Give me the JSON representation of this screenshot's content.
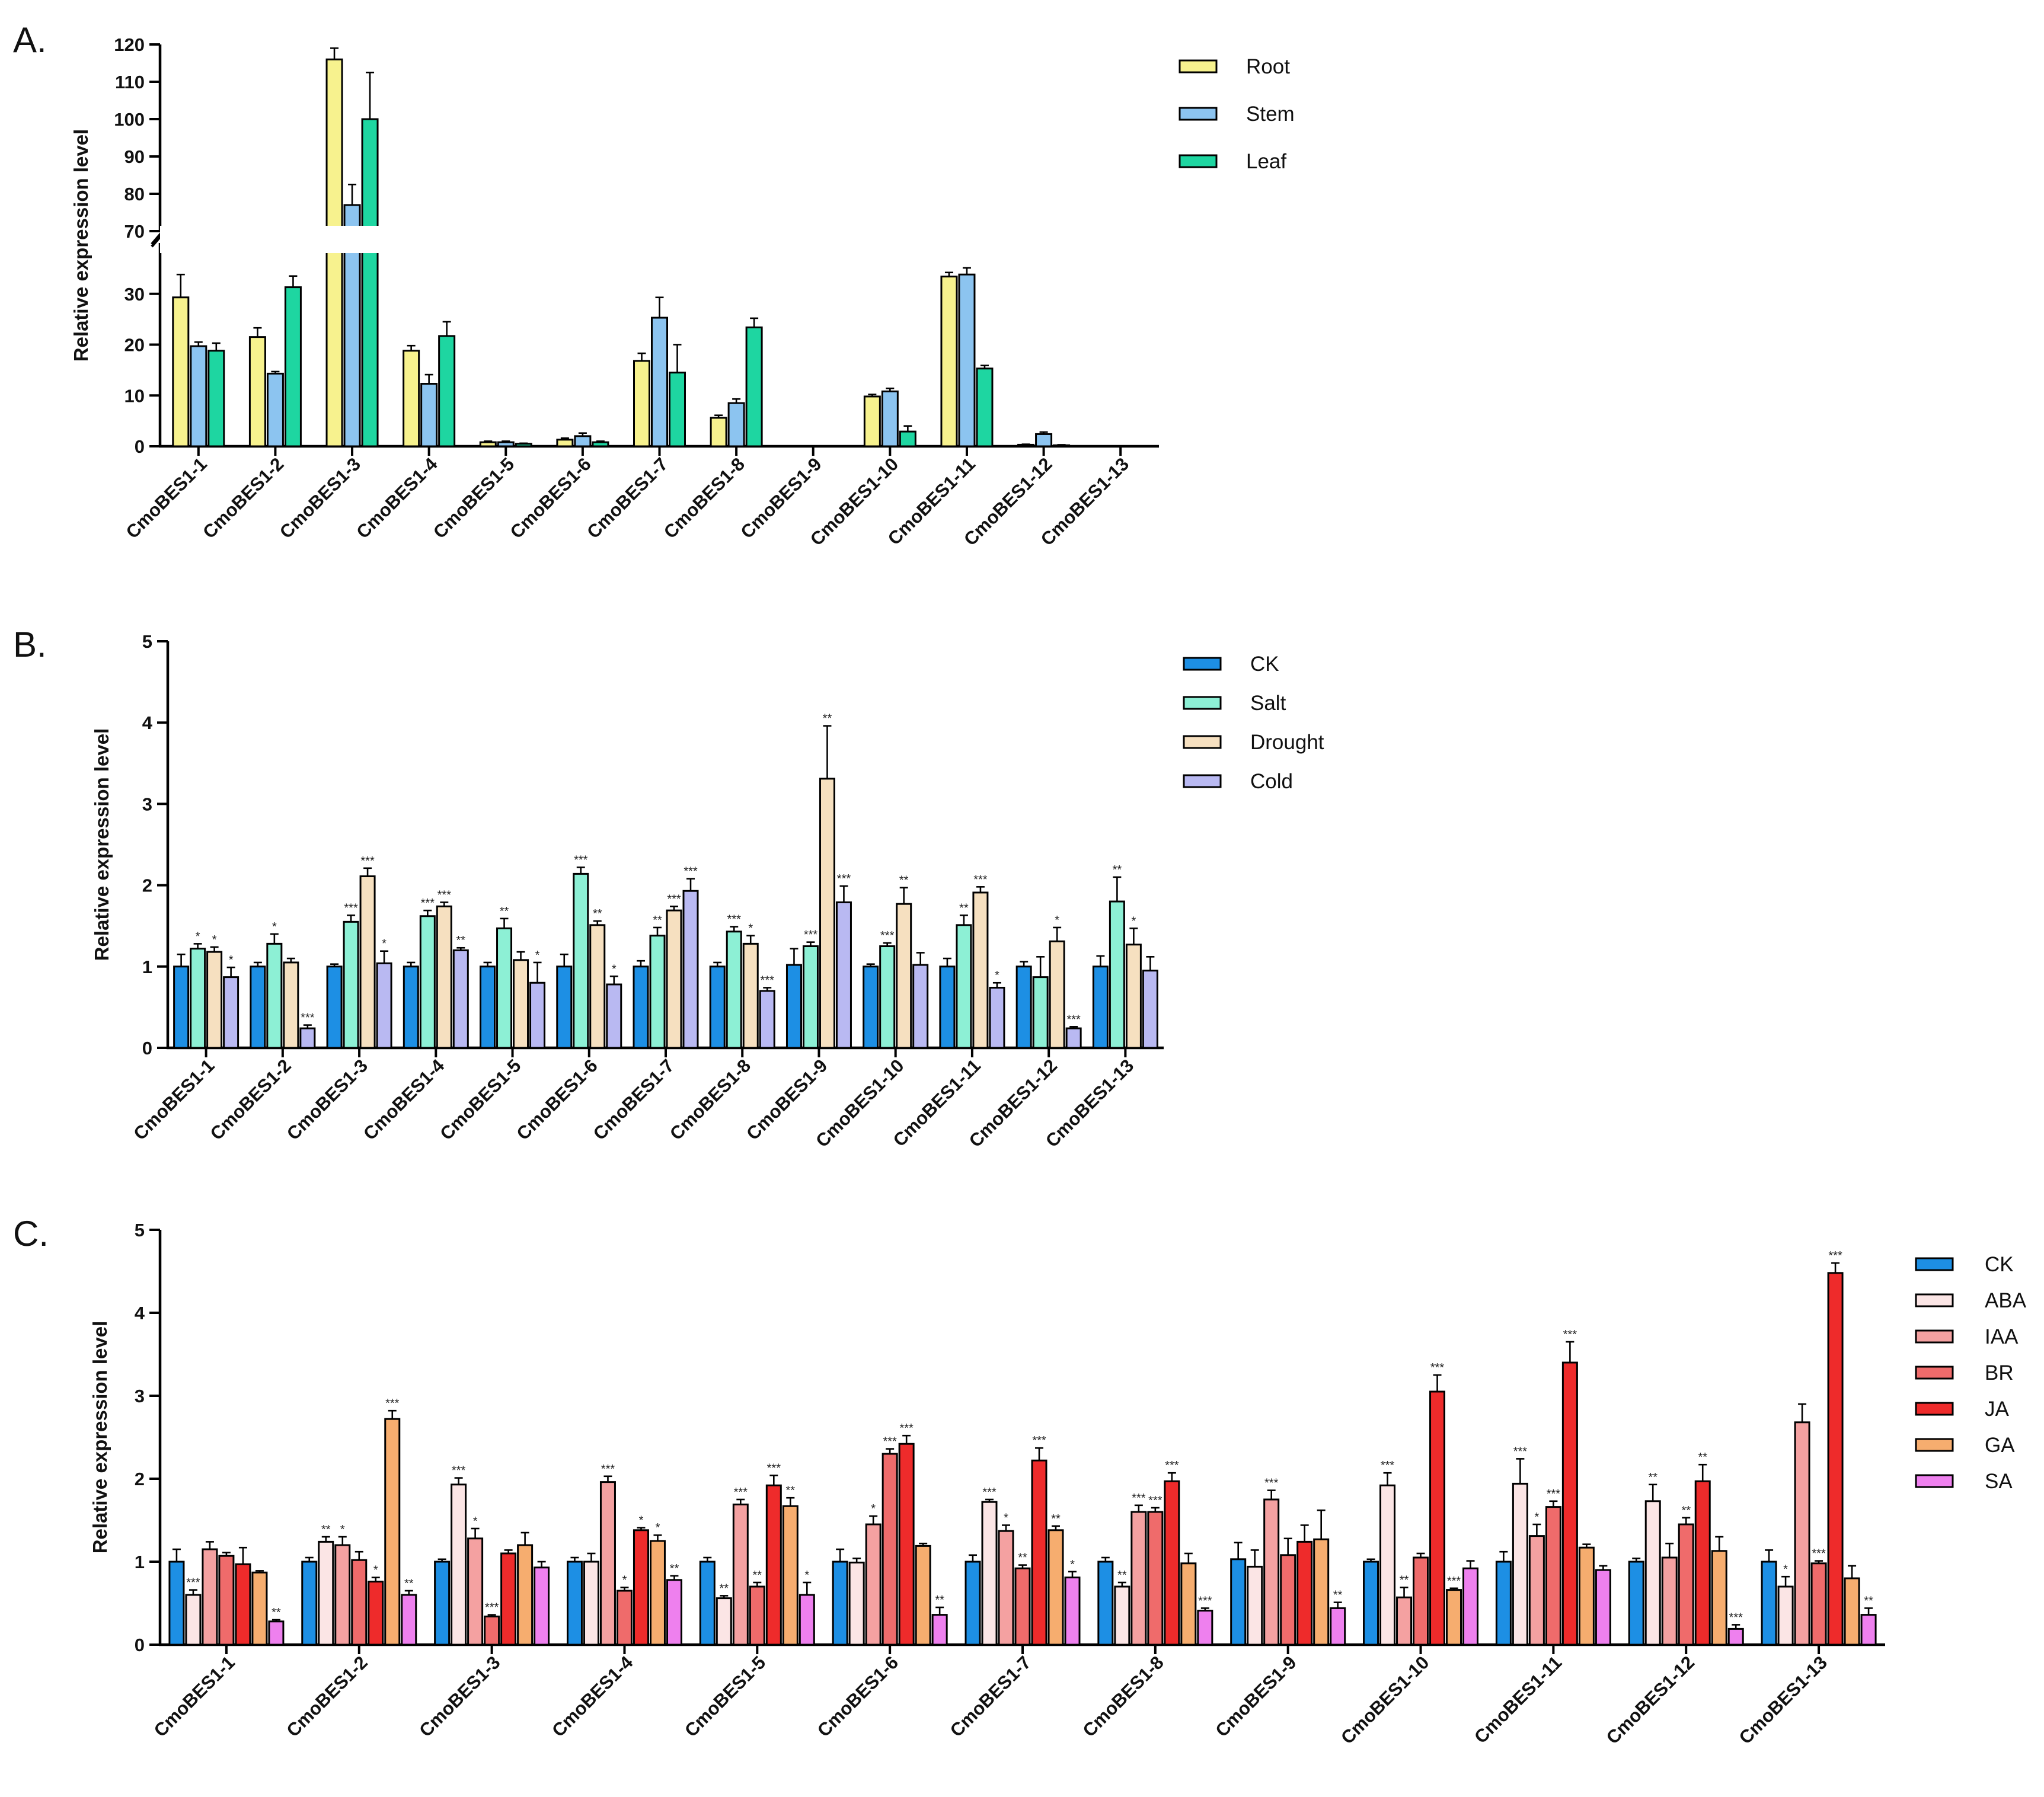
{
  "panels": [
    {
      "label": "A.",
      "ylabel": "Relative expression level",
      "legend": [
        {
          "name": "Root",
          "color": "#f7f28e"
        },
        {
          "name": "Stem",
          "color": "#8cc4f0"
        },
        {
          "name": "Leaf",
          "color": "#1ed6a1"
        }
      ]
    },
    {
      "label": "B.",
      "ylabel": "Relative expression level",
      "legend": [
        {
          "name": "CK",
          "color": "#1d8fe4"
        },
        {
          "name": "Salt",
          "color": "#8df0d5"
        },
        {
          "name": "Drought",
          "color": "#f6e0c0"
        },
        {
          "name": "Cold",
          "color": "#b9b9f2"
        }
      ]
    },
    {
      "label": "C.",
      "ylabel": "Relative expression level",
      "legend": [
        {
          "name": "CK",
          "color": "#1d8fe4"
        },
        {
          "name": "ABA",
          "color": "#fbe5e5"
        },
        {
          "name": "IAA",
          "color": "#f4a1a1"
        },
        {
          "name": "BR",
          "color": "#ef6b6b"
        },
        {
          "name": "JA",
          "color": "#ee2b2b"
        },
        {
          "name": "GA",
          "color": "#f6ad6f"
        },
        {
          "name": "SA",
          "color": "#ee80ee"
        }
      ]
    }
  ],
  "chart_data": [
    {
      "type": "bar",
      "panel": "A.",
      "ylabel": "Relative expression level",
      "categories": [
        "CmoBES1-1",
        "CmoBES1-2",
        "CmoBES1-3",
        "CmoBES1-4",
        "CmoBES1-5",
        "CmoBES1-6",
        "CmoBES1-7",
        "CmoBES1-8",
        "CmoBES1-9",
        "CmoBES1-10",
        "CmoBES1-11",
        "CmoBES1-12",
        "CmoBES1-13"
      ],
      "broken_axis": true,
      "lower_range": [
        0,
        40
      ],
      "upper_range": [
        70,
        120
      ],
      "lower_ticks": [
        0,
        10,
        20,
        30
      ],
      "upper_ticks": [
        70,
        80,
        90,
        100,
        110,
        120
      ],
      "series": [
        {
          "name": "Root",
          "values": [
            29.3,
            21.5,
            116,
            18.8,
            0.8,
            1.3,
            16.8,
            5.6,
            0,
            9.8,
            33.4,
            0.3,
            0
          ],
          "errors": [
            4.5,
            1.8,
            3,
            1,
            0.2,
            0.3,
            1.5,
            0.5,
            0,
            0.4,
            0.8,
            0.1,
            0
          ]
        },
        {
          "name": "Stem",
          "values": [
            19.7,
            14.3,
            77,
            12.3,
            0.8,
            2.0,
            25.3,
            8.5,
            0,
            10.8,
            33.8,
            2.4,
            0
          ],
          "errors": [
            0.8,
            0.4,
            5.5,
            1.8,
            0.2,
            0.6,
            4,
            0.8,
            0,
            0.6,
            1.3,
            0.4,
            0
          ]
        },
        {
          "name": "Leaf",
          "values": [
            18.8,
            31.3,
            100,
            21.7,
            0.5,
            0.8,
            14.5,
            23.4,
            0,
            2.9,
            15.3,
            0.2,
            0
          ],
          "errors": [
            1.5,
            2.2,
            12.5,
            2.8,
            0.1,
            0.2,
            5.5,
            1.8,
            0,
            1.1,
            0.6,
            0.1,
            0
          ]
        }
      ],
      "annotations": []
    },
    {
      "type": "bar",
      "panel": "B.",
      "ylabel": "Relative expression level",
      "categories": [
        "CmoBES1-1",
        "CmoBES1-2",
        "CmoBES1-3",
        "CmoBES1-4",
        "CmoBES1-5",
        "CmoBES1-6",
        "CmoBES1-7",
        "CmoBES1-8",
        "CmoBES1-9",
        "CmoBES1-10",
        "CmoBES1-11",
        "CmoBES1-12",
        "CmoBES1-13"
      ],
      "ylim": [
        0,
        5
      ],
      "yticks": [
        0,
        1,
        2,
        3,
        4,
        5
      ],
      "series": [
        {
          "name": "CK",
          "values": [
            1.0,
            1.0,
            1.0,
            1.0,
            1.0,
            1.0,
            1.0,
            1.0,
            1.02,
            1.0,
            1.0,
            1.0,
            1.0
          ],
          "errors": [
            0.15,
            0.05,
            0.03,
            0.05,
            0.05,
            0.15,
            0.07,
            0.05,
            0.2,
            0.03,
            0.1,
            0.06,
            0.13
          ]
        },
        {
          "name": "Salt",
          "values": [
            1.22,
            1.28,
            1.55,
            1.62,
            1.47,
            2.14,
            1.38,
            1.43,
            1.25,
            1.25,
            1.51,
            0.87,
            1.8
          ],
          "errors": [
            0.06,
            0.12,
            0.08,
            0.07,
            0.12,
            0.08,
            0.1,
            0.06,
            0.05,
            0.04,
            0.12,
            0.25,
            0.3
          ]
        },
        {
          "name": "Drought",
          "values": [
            1.18,
            1.05,
            2.11,
            1.74,
            1.08,
            1.51,
            1.69,
            1.28,
            3.31,
            1.77,
            1.91,
            1.31,
            1.27
          ],
          "errors": [
            0.06,
            0.05,
            0.1,
            0.05,
            0.1,
            0.05,
            0.05,
            0.1,
            0.65,
            0.2,
            0.07,
            0.17,
            0.2
          ]
        },
        {
          "name": "Cold",
          "values": [
            0.87,
            0.24,
            1.04,
            1.2,
            0.8,
            0.78,
            1.93,
            0.7,
            1.79,
            1.02,
            0.74,
            0.24,
            0.95
          ],
          "errors": [
            0.12,
            0.04,
            0.15,
            0.03,
            0.25,
            0.1,
            0.15,
            0.04,
            0.2,
            0.15,
            0.06,
            0.02,
            0.17
          ]
        }
      ],
      "annotations": [
        [
          "",
          "*",
          "*",
          "*"
        ],
        [
          "",
          "*",
          "",
          "***"
        ],
        [
          "",
          "***",
          "***",
          "*"
        ],
        [
          "",
          "***",
          "***",
          "**"
        ],
        [
          "",
          "**",
          "",
          "*"
        ],
        [
          "",
          "***",
          "**",
          "*"
        ],
        [
          "",
          "**",
          "***",
          "***"
        ],
        [
          "",
          "***",
          "*",
          "***"
        ],
        [
          "",
          "***",
          "**",
          "***"
        ],
        [
          "",
          "***",
          "**",
          ""
        ],
        [
          "",
          "**",
          "***",
          "*"
        ],
        [
          "",
          "",
          "*",
          "***"
        ],
        [
          "",
          "**",
          "*",
          ""
        ]
      ]
    },
    {
      "type": "bar",
      "panel": "C.",
      "ylabel": "Relative expression level",
      "categories": [
        "CmoBES1-1",
        "CmoBES1-2",
        "CmoBES1-3",
        "CmoBES1-4",
        "CmoBES1-5",
        "CmoBES1-6",
        "CmoBES1-7",
        "CmoBES1-8",
        "CmoBES1-9",
        "CmoBES1-10",
        "CmoBES1-11",
        "CmoBES1-12",
        "CmoBES1-13"
      ],
      "ylim": [
        0,
        5
      ],
      "yticks": [
        0,
        1,
        2,
        3,
        4,
        5
      ],
      "series": [
        {
          "name": "CK",
          "values": [
            1.0,
            1.0,
            1.0,
            1.0,
            1.0,
            1.0,
            1.0,
            1.0,
            1.03,
            1.0,
            1.0,
            1.0,
            1.0
          ],
          "errors": [
            0.15,
            0.05,
            0.03,
            0.05,
            0.05,
            0.15,
            0.08,
            0.05,
            0.2,
            0.03,
            0.12,
            0.04,
            0.14
          ]
        },
        {
          "name": "ABA",
          "values": [
            0.6,
            1.24,
            1.93,
            1.0,
            0.56,
            0.99,
            1.72,
            0.7,
            0.94,
            1.92,
            1.94,
            1.73,
            0.7
          ],
          "errors": [
            0.06,
            0.06,
            0.08,
            0.1,
            0.03,
            0.05,
            0.03,
            0.05,
            0.2,
            0.15,
            0.3,
            0.2,
            0.12
          ]
        },
        {
          "name": "IAA",
          "values": [
            1.15,
            1.2,
            1.28,
            1.96,
            1.69,
            1.45,
            1.37,
            1.6,
            1.75,
            0.57,
            1.31,
            1.05,
            2.68
          ],
          "errors": [
            0.09,
            0.1,
            0.12,
            0.07,
            0.06,
            0.1,
            0.07,
            0.08,
            0.11,
            0.12,
            0.14,
            0.17,
            0.22
          ]
        },
        {
          "name": "BR",
          "values": [
            1.07,
            1.02,
            0.34,
            0.65,
            0.7,
            2.3,
            0.92,
            1.6,
            1.08,
            1.05,
            1.66,
            1.45,
            0.98
          ],
          "errors": [
            0.04,
            0.1,
            0.02,
            0.04,
            0.05,
            0.06,
            0.04,
            0.05,
            0.2,
            0.05,
            0.07,
            0.08,
            0.03
          ]
        },
        {
          "name": "JA",
          "values": [
            0.97,
            0.76,
            1.1,
            1.38,
            1.92,
            2.42,
            2.22,
            1.97,
            1.24,
            3.05,
            3.4,
            1.97,
            4.48
          ],
          "errors": [
            0.2,
            0.05,
            0.04,
            0.03,
            0.12,
            0.1,
            0.15,
            0.1,
            0.2,
            0.2,
            0.25,
            0.2,
            0.12
          ]
        },
        {
          "name": "GA",
          "values": [
            0.87,
            2.72,
            1.2,
            1.25,
            1.67,
            1.19,
            1.38,
            0.98,
            1.27,
            0.66,
            1.17,
            1.13,
            0.8
          ],
          "errors": [
            0.02,
            0.1,
            0.15,
            0.07,
            0.1,
            0.03,
            0.05,
            0.12,
            0.35,
            0.02,
            0.04,
            0.17,
            0.15
          ]
        },
        {
          "name": "SA",
          "values": [
            0.28,
            0.6,
            0.93,
            0.78,
            0.6,
            0.36,
            0.81,
            0.41,
            0.44,
            0.92,
            0.9,
            0.19,
            0.36
          ],
          "errors": [
            0.02,
            0.05,
            0.07,
            0.05,
            0.15,
            0.09,
            0.07,
            0.03,
            0.07,
            0.09,
            0.05,
            0.05,
            0.08
          ]
        }
      ],
      "annotations": [
        [
          "",
          "***",
          "",
          "",
          "",
          "",
          "**"
        ],
        [
          "",
          "**",
          "*",
          "",
          "*",
          "***",
          "**"
        ],
        [
          "",
          "***",
          "*",
          "***",
          "",
          "",
          ""
        ],
        [
          "",
          "",
          "***",
          "*",
          "*",
          "*",
          "**"
        ],
        [
          "",
          "**",
          "***",
          "**",
          "***",
          "**",
          "*"
        ],
        [
          "",
          "",
          "*",
          "***",
          "***",
          "",
          "**"
        ],
        [
          "",
          "***",
          "*",
          "**",
          "***",
          "**",
          "*"
        ],
        [
          "",
          "**",
          "***",
          "***",
          "***",
          "",
          "***"
        ],
        [
          "",
          "",
          "***",
          "",
          "",
          "",
          "**"
        ],
        [
          "",
          "***",
          "**",
          "",
          "***",
          "***",
          ""
        ],
        [
          "",
          "***",
          "*",
          "***",
          "***",
          "",
          ""
        ],
        [
          "",
          "**",
          "",
          "**",
          "**",
          "",
          "***"
        ],
        [
          "",
          "*",
          "",
          "***",
          "***",
          "",
          "**"
        ]
      ]
    }
  ]
}
